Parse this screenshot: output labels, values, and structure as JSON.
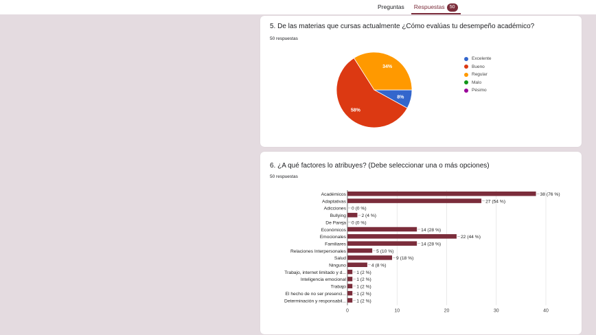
{
  "tabs": {
    "questions_label": "Preguntas",
    "responses_label": "Respuestas",
    "responses_count": "50"
  },
  "q5": {
    "title": "5. De las materias que cursas actualmente ¿Cómo evalúas tu desempeño académico?",
    "responses": "50 respuestas"
  },
  "q6": {
    "title": "6. ¿A qué factores lo atribuyes? (Debe seleccionar una o más opciones)",
    "responses": "50 respuestas"
  },
  "chart_data": [
    {
      "type": "pie",
      "categories": [
        "Excelente",
        "Bueno",
        "Regular",
        "Malo",
        "Pésimo"
      ],
      "values": [
        8,
        58,
        34,
        0,
        0
      ],
      "labels": [
        "8%",
        "58%",
        "34%",
        "",
        ""
      ],
      "colors": [
        "#3366cc",
        "#dc3912",
        "#ff9900",
        "#109618",
        "#990099"
      ],
      "legend": "right"
    },
    {
      "type": "bar",
      "orientation": "horizontal",
      "categories": [
        "Académicos",
        "Adaptativas",
        "Adicciones",
        "Bullying",
        "De Pareja",
        "Económicos",
        "Emocionales",
        "Familiares",
        "Relaciones Interpersonales",
        "Salud",
        "Ninguno",
        "Trabajo, internet limitado y d...",
        "Inteligencia emocional",
        "Trabajo",
        "El hecho de no ser presenci...",
        "Determinación y responsabil..."
      ],
      "values": [
        38,
        27,
        0,
        2,
        0,
        14,
        22,
        14,
        5,
        9,
        4,
        1,
        1,
        1,
        1,
        1
      ],
      "labels": [
        "38 (76 %)",
        "27 (54 %)",
        "0 (0 %)",
        "2 (4 %)",
        "0 (0 %)",
        "14 (28 %)",
        "22 (44 %)",
        "14 (28 %)",
        "5 (10 %)",
        "9 (18 %)",
        "4 (8 %)",
        "1 (2 %)",
        "1 (2 %)",
        "1 (2 %)",
        "1 (2 %)",
        "1 (2 %)"
      ],
      "xticks": [
        "0",
        "10",
        "20",
        "30",
        "40"
      ],
      "xlim": [
        0,
        40
      ],
      "bar_color": "#7b2d3b",
      "grid": true
    }
  ]
}
